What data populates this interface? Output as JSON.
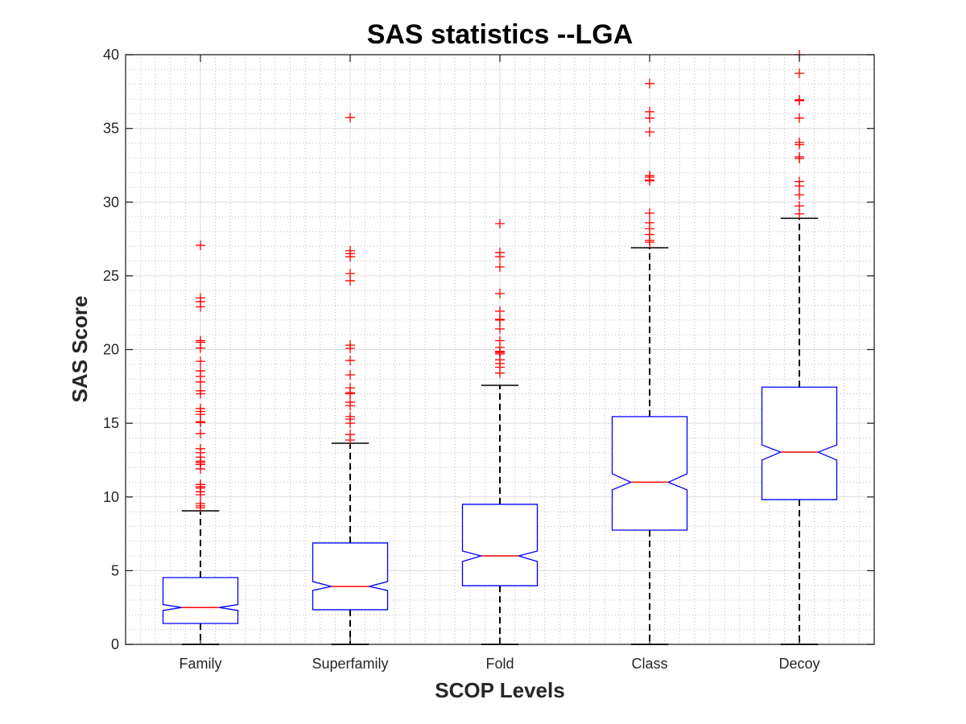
{
  "chart_data": {
    "type": "boxplot",
    "title": "SAS statistics --LGA",
    "xlabel": "SCOP Levels",
    "ylabel": "SAS Score",
    "ylim": [
      0,
      40
    ],
    "yticks": [
      0,
      5,
      10,
      15,
      20,
      25,
      30,
      35,
      40
    ],
    "grid": "major and minor",
    "notched": true,
    "categories": [
      "Family",
      "Superfamily",
      "Fold",
      "Class",
      "Decoy"
    ],
    "colors": {
      "box": "#0000ff",
      "median": "#ff0000",
      "whisker": "#000000",
      "outlier": "#ff0000",
      "major_grid": "#dcdcdc",
      "minor_grid": "#bdbdbd",
      "axes": "#262626"
    },
    "boxes": [
      {
        "name": "Family",
        "whisker_low": 0,
        "q1": 1.42,
        "median": 2.5,
        "q3": 4.53,
        "whisker_high": 9.06,
        "notch_low": 2.3,
        "notch_high": 2.7,
        "outliers": [
          27.07,
          23.5,
          23.25,
          22.9,
          20.6,
          20.5,
          20.1,
          19.2,
          18.55,
          18.17,
          17.8,
          17.2,
          17.0,
          16.0,
          15.8,
          15.6,
          15.1,
          15.05,
          14.3,
          13.27,
          13.0,
          12.7,
          12.43,
          12.33,
          12.2,
          11.9,
          10.85,
          10.7,
          10.6,
          10.35,
          10.15,
          9.55,
          9.4,
          9.27
        ]
      },
      {
        "name": "Superfamily",
        "whisker_low": 0,
        "q1": 2.35,
        "median": 3.93,
        "q3": 6.88,
        "whisker_high": 13.64,
        "notch_low": 3.66,
        "notch_high": 4.26,
        "outliers": [
          35.74,
          26.7,
          26.5,
          26.3,
          25.15,
          24.67,
          20.3,
          20.08,
          19.26,
          18.28,
          17.4,
          17.08,
          17.0,
          16.43,
          16.2,
          15.45,
          15.28,
          15.0,
          14.24,
          13.86
        ]
      },
      {
        "name": "Fold",
        "whisker_low": 0,
        "q1": 3.98,
        "median": 6.0,
        "q3": 9.5,
        "whisker_high": 17.57,
        "notch_low": 5.62,
        "notch_high": 6.33,
        "outliers": [
          28.54,
          26.58,
          26.3,
          25.6,
          23.8,
          22.6,
          22.05,
          22.0,
          21.4,
          20.6,
          20.15,
          19.88,
          19.8,
          19.7,
          19.3,
          19.05,
          18.8,
          18.4
        ]
      },
      {
        "name": "Class",
        "whisker_low": 0,
        "q1": 7.75,
        "median": 11.0,
        "q3": 15.45,
        "whisker_high": 26.9,
        "notch_low": 10.48,
        "notch_high": 11.57,
        "outliers": [
          38.04,
          36.13,
          35.7,
          34.76,
          31.8,
          31.7,
          31.5,
          31.45,
          29.25,
          28.6,
          28.2,
          27.8,
          27.4,
          27.28
        ]
      },
      {
        "name": "Decoy",
        "whisker_low": 0,
        "q1": 9.82,
        "median": 13.04,
        "q3": 17.45,
        "whisker_high": 28.9,
        "notch_low": 12.5,
        "notch_high": 13.53,
        "outliers": [
          40.0,
          38.74,
          36.94,
          36.88,
          35.7,
          34.05,
          33.9,
          33.07,
          32.96,
          31.4,
          31.1,
          30.5,
          29.74,
          29.2
        ]
      }
    ]
  }
}
